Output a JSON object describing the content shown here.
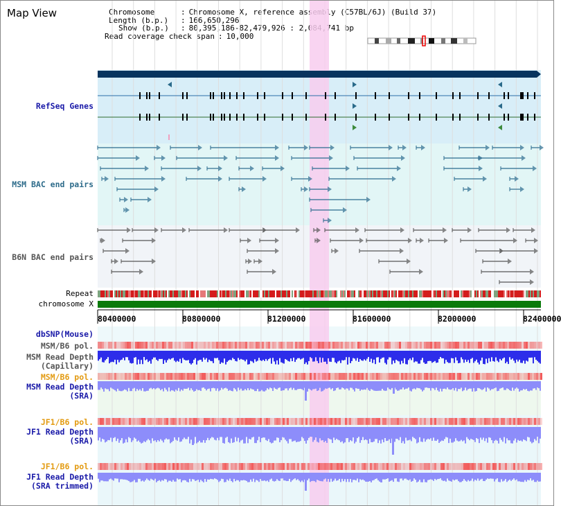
{
  "title": "Map View",
  "info": {
    "chromosome_key": "Chromosome",
    "chromosome_val": "Chromosome X, reference assembly (C57BL/6J) (Build 37)",
    "length_key": "Length (b.p.)",
    "length_val": "166,650,296",
    "show_key": "Show (b.p.)",
    "show_val": "80,395,186-82,479,926 : 2,084,741 bp",
    "span_key": "Read coverage check span",
    "span_val": "10,000"
  },
  "tracks": {
    "refseq": "RefSeq Genes",
    "msm_bac": "MSM BAC end pairs",
    "b6n_bac": "B6N BAC end pairs",
    "repeat": "Repeat",
    "chrom": "chromosome X",
    "dbsnp": "dbSNP(Mouse)",
    "msm_pol1": "MSM/B6 pol.",
    "msm_depth_cap_1": "MSM Read Depth",
    "msm_depth_cap_2": "(Capillary)",
    "msm_pol2": "MSM/B6 pol.",
    "msm_depth_sra_1": "MSM Read Depth",
    "msm_depth_sra_2": "(SRA)",
    "jf1_pol1": "JF1/B6 pol.",
    "jf1_depth_1": "JF1 Read Depth",
    "jf1_depth_2": "(SRA)",
    "jf1_pol2": "JF1/B6 pol.",
    "jf1_trim_1": "JF1 Read Depth",
    "jf1_trim_2": "(SRA trimmed)"
  },
  "axis_ticks": [
    "80400000",
    "80800000",
    "81200000",
    "81600000",
    "82000000",
    "82400000"
  ],
  "colors": {
    "highlight": "#f8cdef",
    "refseq_bg": "#d8eef8",
    "msm_bg": "#e2f6f6",
    "depth_blue": "#2d2dea",
    "depth_light": "#8d8dfa",
    "pol_red": "#f25a5a",
    "chrom_green": "#0b7a0b",
    "gene_bar": "#08345e"
  }
}
